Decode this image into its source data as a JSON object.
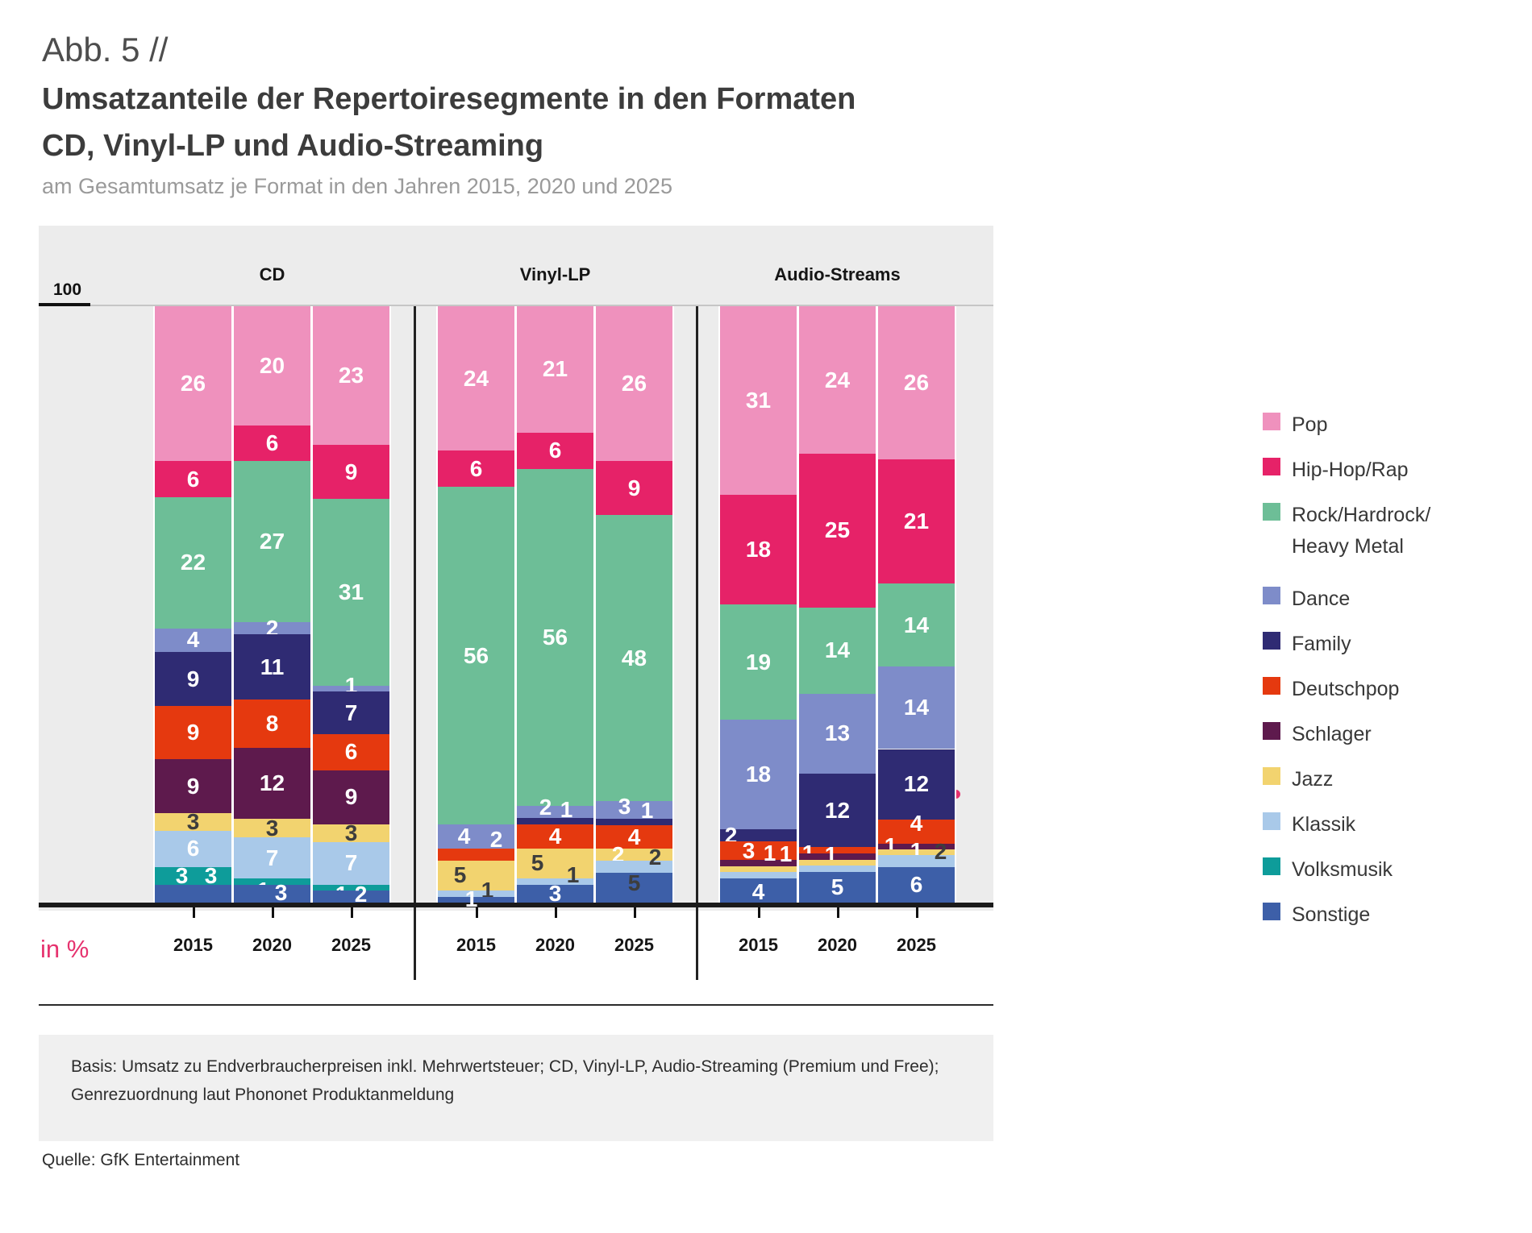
{
  "figure_label": "Abb. 5 //",
  "title": {
    "line1": "Umsatzanteile der Repertoiresegmente in den Formaten",
    "line2": "CD, Vinyl-LP und Audio-Streaming"
  },
  "subtitle": "am Gesamtumsatz je Format in den Jahren 2015, 2020 und 2025",
  "axis": {
    "top_label": "100",
    "unit_label": "in %",
    "years": [
      "2015",
      "2020",
      "2025"
    ]
  },
  "footnote": {
    "line1": "Basis: Umsatz zu Endverbraucherpreisen inkl. Mehrwertsteuer; CD, Vinyl-LP, Audio-Streaming (Premium und Free);",
    "line2": "Genrezuordnung laut Phononet Produktanmeldung"
  },
  "source": "Quelle: GfK Entertainment",
  "accent_color": "#e6326e",
  "chart_data": {
    "type": "bar",
    "subtype": "stacked-100-percent",
    "unit": "%",
    "ylim": [
      0,
      100
    ],
    "legend_position": "right",
    "legend": [
      {
        "key": "pop",
        "label": "Pop",
        "color": "#EF91BD"
      },
      {
        "key": "hiphop",
        "label": "Hip-Hop/Rap",
        "color": "#E62268"
      },
      {
        "key": "rock",
        "label": "Rock/Hardrock/ Heavy Metal",
        "color": "#6DBE97"
      },
      {
        "key": "dance",
        "label": "Dance",
        "color": "#7E8CC9"
      },
      {
        "key": "family",
        "label": "Family",
        "color": "#2F2B73"
      },
      {
        "key": "deutschpop",
        "label": "Deutschpop",
        "color": "#E5390F"
      },
      {
        "key": "schlager",
        "label": "Schlager",
        "color": "#5E1A4D"
      },
      {
        "key": "jazz",
        "label": "Jazz",
        "color": "#F2D36F"
      },
      {
        "key": "klassik",
        "label": "Klassik",
        "color": "#A9C9E9"
      },
      {
        "key": "volksmusik",
        "label": "Volksmusik",
        "color": "#0E9C9A"
      },
      {
        "key": "sonstige",
        "label": "Sonstige",
        "color": "#3D5FA8"
      }
    ],
    "groups": [
      {
        "label": "CD",
        "bars": [
          {
            "year": "2015",
            "segments": [
              {
                "g": "pop",
                "v": 26,
                "t": "26"
              },
              {
                "g": "hiphop",
                "v": 6,
                "t": "6"
              },
              {
                "g": "rock",
                "v": 22,
                "t": "22"
              },
              {
                "g": "dance",
                "v": 4,
                "t": "4"
              },
              {
                "g": "family",
                "v": 9,
                "t": "9"
              },
              {
                "g": "deutschpop",
                "v": 9,
                "t": "9"
              },
              {
                "g": "schlager",
                "v": 9,
                "t": "9"
              },
              {
                "g": "jazz",
                "v": 3,
                "t": "3",
                "dk": true
              },
              {
                "g": "klassik",
                "v": 6,
                "t": "6"
              },
              {
                "g": "volksmusik",
                "v": 3,
                "t": "3",
                "nx": -14
              },
              {
                "g": "sonstige",
                "v": 3,
                "t": "3",
                "nx": 22,
                "ny": -22
              }
            ]
          },
          {
            "year": "2020",
            "segments": [
              {
                "g": "pop",
                "v": 20,
                "t": "20"
              },
              {
                "g": "hiphop",
                "v": 6,
                "t": "6"
              },
              {
                "g": "rock",
                "v": 27,
                "t": "27"
              },
              {
                "g": "dance",
                "v": 2,
                "t": "2"
              },
              {
                "g": "family",
                "v": 11,
                "t": "11"
              },
              {
                "g": "deutschpop",
                "v": 8,
                "t": "8"
              },
              {
                "g": "schlager",
                "v": 12,
                "t": "12"
              },
              {
                "g": "jazz",
                "v": 3,
                "t": "3",
                "dk": true
              },
              {
                "g": "klassik",
                "v": 7,
                "t": "7"
              },
              {
                "g": "volksmusik",
                "v": 1,
                "t": "1",
                "nx": -11,
                "ny": 11
              },
              {
                "g": "sonstige",
                "v": 3,
                "t": "3",
                "nx": 11,
                "ny": -1
              }
            ]
          },
          {
            "year": "2025",
            "segments": [
              {
                "g": "pop",
                "v": 23,
                "t": "23"
              },
              {
                "g": "hiphop",
                "v": 9,
                "t": "9"
              },
              {
                "g": "rock",
                "v": 31,
                "t": "31"
              },
              {
                "g": "dance",
                "v": 1,
                "t": "1",
                "ny": -4
              },
              {
                "g": "family",
                "v": 7,
                "t": "7"
              },
              {
                "g": "deutschpop",
                "v": 6,
                "t": "6"
              },
              {
                "g": "schlager",
                "v": 9,
                "t": "9"
              },
              {
                "g": "jazz",
                "v": 3,
                "t": "3",
                "dk": true
              },
              {
                "g": "klassik",
                "v": 7,
                "t": "7"
              },
              {
                "g": "volksmusik",
                "v": 1,
                "t": "1",
                "nx": -12,
                "ny": 9
              },
              {
                "g": "sonstige",
                "v": 2,
                "t": "2",
                "nx": 12,
                "ny": -3
              }
            ]
          }
        ]
      },
      {
        "label": "Vinyl-LP",
        "bars": [
          {
            "year": "2015",
            "segments": [
              {
                "g": "pop",
                "v": 24,
                "t": "24"
              },
              {
                "g": "hiphop",
                "v": 6,
                "t": "6"
              },
              {
                "g": "rock",
                "v": 56,
                "t": "56"
              },
              {
                "g": "dance",
                "v": 4,
                "t": "4",
                "nx": -15
              },
              {
                "g": "deutschpop",
                "v": 2,
                "t": "2",
                "nx": 25,
                "ny": -18
              },
              {
                "g": "jazz",
                "v": 5,
                "t": "5",
                "dk": true,
                "nx": -20
              },
              {
                "g": "klassik",
                "v": 1,
                "t": "1",
                "dk": true,
                "nx": 14,
                "ny": -4
              },
              {
                "g": "sonstige",
                "v": 1,
                "t": "1",
                "nx": -6
              }
            ]
          },
          {
            "year": "2020",
            "segments": [
              {
                "g": "pop",
                "v": 21,
                "t": "21"
              },
              {
                "g": "hiphop",
                "v": 6,
                "t": "6"
              },
              {
                "g": "rock",
                "v": 56,
                "t": "56"
              },
              {
                "g": "dance",
                "v": 2,
                "t": "2",
                "nx": -12,
                "ny": -6
              },
              {
                "g": "family",
                "v": 1,
                "t": "1",
                "nx": 14,
                "ny": -14
              },
              {
                "g": "deutschpop",
                "v": 4,
                "t": "4"
              },
              {
                "g": "jazz",
                "v": 5,
                "t": "5",
                "dk": true,
                "nx": -22
              },
              {
                "g": "klassik",
                "v": 1,
                "t": "1",
                "dk": true,
                "nx": 22,
                "ny": -8
              },
              {
                "g": "sonstige",
                "v": 3,
                "t": "3"
              }
            ]
          },
          {
            "year": "2025",
            "segments": [
              {
                "g": "pop",
                "v": 26,
                "t": "26"
              },
              {
                "g": "hiphop",
                "v": 9,
                "t": "9"
              },
              {
                "g": "rock",
                "v": 48,
                "t": "48"
              },
              {
                "g": "dance",
                "v": 3,
                "t": "3",
                "nx": -12,
                "ny": -4
              },
              {
                "g": "family",
                "v": 1,
                "t": "1",
                "nx": 16,
                "ny": -14
              },
              {
                "g": "deutschpop",
                "v": 4,
                "t": "4"
              },
              {
                "g": "jazz",
                "v": 2,
                "t": "2",
                "nx": -20
              },
              {
                "g": "klassik",
                "v": 2,
                "t": "2",
                "dk": true,
                "nx": 26,
                "ny": -12
              },
              {
                "g": "sonstige",
                "v": 5,
                "t": "5",
                "dk": true,
                "ny": -6
              }
            ]
          }
        ]
      },
      {
        "label": "Audio-Streams",
        "bars": [
          {
            "year": "2015",
            "segments": [
              {
                "g": "pop",
                "v": 31,
                "t": "31"
              },
              {
                "g": "hiphop",
                "v": 18,
                "t": "18"
              },
              {
                "g": "rock",
                "v": 19,
                "t": "19"
              },
              {
                "g": "dance",
                "v": 18,
                "t": "18"
              },
              {
                "g": "family",
                "v": 2,
                "t": "2",
                "nx": -34
              },
              {
                "g": "deutschpop",
                "v": 3,
                "t": "3",
                "nx": -12
              },
              {
                "g": "schlager",
                "v": 1,
                "t": "1",
                "nx": 14,
                "ny": -12
              },
              {
                "g": "jazz",
                "v": 1,
                "t": "1",
                "nx": 34,
                "ny": -18
              },
              {
                "g": "klassik",
                "v": 1,
                "t": "1",
                "nx": -14,
                "ny": 14
              },
              {
                "g": "sonstige",
                "v": 4,
                "t": "4",
                "ny": 2
              }
            ]
          },
          {
            "year": "2020",
            "segments": [
              {
                "g": "pop",
                "v": 24,
                "t": "24"
              },
              {
                "g": "hiphop",
                "v": 25,
                "t": "25"
              },
              {
                "g": "rock",
                "v": 14,
                "t": "14"
              },
              {
                "g": "dance",
                "v": 13,
                "t": "13"
              },
              {
                "g": "family",
                "v": 12,
                "t": "12"
              },
              {
                "g": "deutschpop",
                "v": 1,
                "t": "1",
                "nx": -36,
                "ny": 4
              },
              {
                "g": "schlager",
                "v": 1,
                "t": "1",
                "nx": -8,
                "ny": -2
              },
              {
                "g": "jazz",
                "v": 1,
                "t": ""
              },
              {
                "g": "klassik",
                "v": 1,
                "t": ""
              },
              {
                "g": "sonstige",
                "v": 5,
                "t": "5"
              }
            ]
          },
          {
            "year": "2025",
            "segments": [
              {
                "g": "pop",
                "v": 26,
                "t": "26"
              },
              {
                "g": "hiphop",
                "v": 21,
                "t": "21"
              },
              {
                "g": "rock",
                "v": 14,
                "t": "14"
              },
              {
                "g": "dance",
                "v": 14,
                "t": "14"
              },
              {
                "g": "family",
                "v": 12,
                "t": "12"
              },
              {
                "g": "deutschpop",
                "v": 4,
                "t": "4",
                "ny": -10
              },
              {
                "g": "schlager",
                "v": 1,
                "t": "1",
                "nx": -32
              },
              {
                "g": "jazz",
                "v": 1,
                "t": "1",
                "ny": -2
              },
              {
                "g": "klassik",
                "v": 2,
                "t": "2",
                "dk": true,
                "nx": 30,
                "ny": -12
              },
              {
                "g": "sonstige",
                "v": 6,
                "t": "6"
              }
            ]
          }
        ]
      }
    ]
  }
}
